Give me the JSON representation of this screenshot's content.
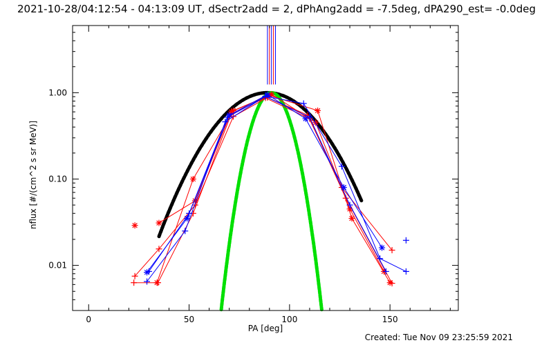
{
  "title": "2021-10-28/04:12:54 - 04:13:09 UT, dSectr2add = 2, dPhAng2add = -7.5deg, dPA290_est= -0.0deg",
  "footer": "Created: Tue Nov 09 23:25:59 2021",
  "chart_data": {
    "type": "scatter",
    "xlabel": "PA [deg]",
    "ylabel": "nflux [#/(cm^2 s sr MeV)]",
    "xlim": [
      -8,
      184
    ],
    "ylim": [
      0.003,
      6.0
    ],
    "yscale": "log",
    "xticks": [
      0,
      50,
      100,
      150
    ],
    "xtick_labels": [
      "0",
      "50",
      "100",
      "150"
    ],
    "yticks": [
      0.01,
      0.1,
      1.0
    ],
    "ytick_labels": [
      "0.01",
      "0.10",
      "1.00"
    ],
    "grid": false,
    "colors": {
      "red": "#ff0000",
      "blue": "#0000ff",
      "black": "#000000",
      "green": "#00e000"
    },
    "vertical_markers": [
      {
        "x": 89.0,
        "color": "#0000ff"
      },
      {
        "x": 90.0,
        "color": "#ff0000"
      },
      {
        "x": 91.0,
        "color": "#0000ff"
      },
      {
        "x": 92.0,
        "color": "#ff0000"
      },
      {
        "x": 93.0,
        "color": "#0000ff"
      }
    ],
    "series": [
      {
        "color": "#ff0000",
        "marker": "plus",
        "points": [
          [
            22.5,
            0.0063
          ],
          [
            34.5,
            0.0063
          ],
          [
            52,
            0.04
          ],
          [
            71,
            0.57
          ],
          [
            88,
            0.87
          ],
          [
            110,
            0.5
          ],
          [
            128,
            0.06
          ],
          [
            151,
            0.0062
          ]
        ]
      },
      {
        "color": "#ff0000",
        "marker": "asterisk",
        "points": [
          [
            34,
            0.0063
          ],
          [
            52,
            0.1
          ],
          [
            72,
            0.62
          ],
          [
            90,
            0.93
          ],
          [
            114,
            0.62
          ],
          [
            131,
            0.035
          ],
          [
            150,
            0.0063
          ]
        ]
      },
      {
        "color": "#ff0000",
        "marker": "plus",
        "points": [
          [
            23,
            0.0075
          ],
          [
            35,
            0.0155
          ],
          [
            53,
            0.05
          ],
          [
            72,
            0.53
          ],
          [
            89,
            0.88
          ],
          [
            109,
            0.55
          ],
          [
            126,
            0.08
          ],
          [
            151,
            0.015
          ]
        ]
      },
      {
        "color": "#ff0000",
        "marker": "asterisk",
        "points": [
          [
            35,
            0.031
          ],
          [
            53,
            0.056
          ],
          [
            71,
            0.6
          ],
          [
            91,
            0.96
          ],
          [
            113,
            0.45
          ],
          [
            130,
            0.045
          ],
          [
            147,
            0.0085
          ]
        ]
      },
      {
        "color": "#ff0000",
        "marker": "asterisk",
        "points": [
          [
            23,
            0.029
          ]
        ]
      },
      {
        "color": "#0000ff",
        "marker": "plus",
        "points": [
          [
            29,
            0.0065
          ],
          [
            48,
            0.025
          ],
          [
            68,
            0.46
          ],
          [
            88,
            0.91
          ],
          [
            107,
            0.75
          ],
          [
            126,
            0.14
          ],
          [
            145,
            0.012
          ],
          [
            158,
            0.0085
          ]
        ]
      },
      {
        "color": "#0000ff",
        "marker": "asterisk",
        "points": [
          [
            29,
            0.0083
          ],
          [
            49,
            0.035
          ],
          [
            70,
            0.55
          ],
          [
            89,
            0.95
          ],
          [
            108,
            0.5
          ],
          [
            127,
            0.08
          ],
          [
            146,
            0.016
          ]
        ]
      },
      {
        "color": "#0000ff",
        "marker": "plus",
        "points": [
          [
            30,
            0.0085
          ],
          [
            50,
            0.04
          ],
          [
            69,
            0.52
          ],
          [
            88,
            0.9
          ],
          [
            110,
            0.52
          ],
          [
            130,
            0.05
          ],
          [
            148,
            0.0085
          ]
        ]
      },
      {
        "color": "#0000ff",
        "marker": "plus",
        "points": [
          [
            158,
            0.0195
          ]
        ]
      }
    ],
    "fits": [
      {
        "color": "#000000",
        "style": "thick-dashed",
        "curve": "gaussian",
        "center": 89,
        "peak": 1.0,
        "sigma": 19.5,
        "x_range": [
          35,
          136
        ]
      },
      {
        "color": "#00e000",
        "style": "thick-dashed",
        "curve": "cos_power",
        "center": 91,
        "peak": 1.0,
        "n": 10.5,
        "x_range": [
          44,
          139
        ]
      }
    ]
  }
}
